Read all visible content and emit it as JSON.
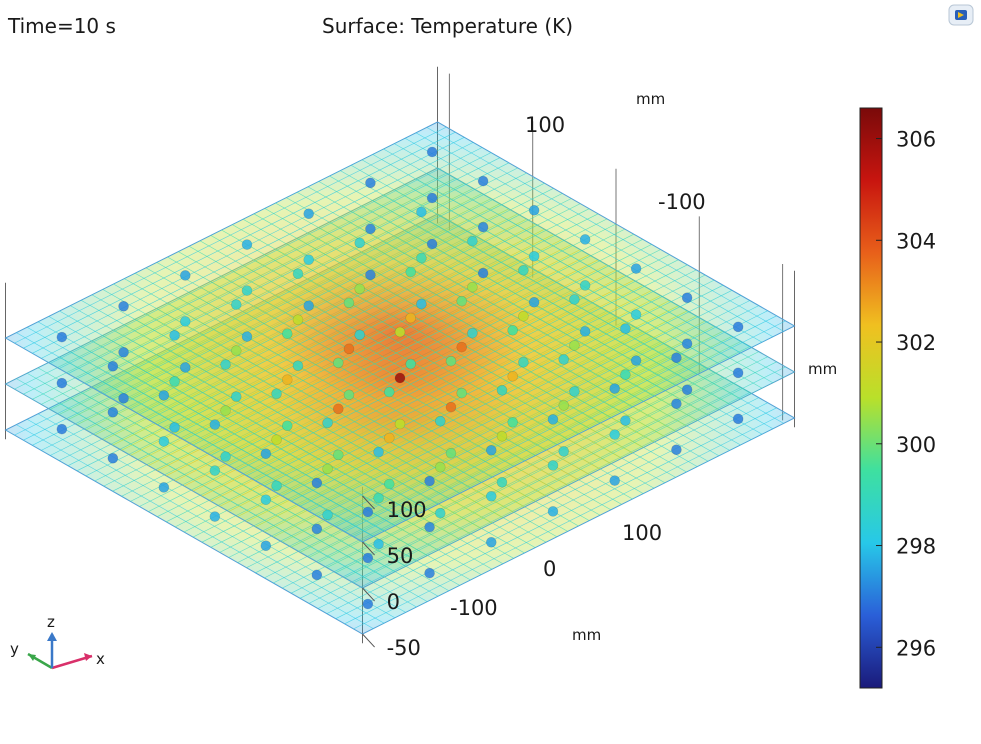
{
  "header": {
    "time_label": "Time=10 s",
    "plot_title": "Surface: Temperature (K)"
  },
  "icons": {
    "app_icon": "comsol-logo-icon",
    "triad": "xyz-axis-triad-icon"
  },
  "triad": {
    "x": "x",
    "y": "y",
    "z": "z"
  },
  "chart_data": {
    "type": "heatmap",
    "title": "Surface: Temperature (K)",
    "subtitle": "Time=10 s",
    "view": "3d",
    "quantity": "Temperature",
    "unit": "K",
    "axes": {
      "x": {
        "label": "mm",
        "ticks": [
          "100",
          "0",
          "-100"
        ]
      },
      "y": {
        "label": "mm",
        "ticks": [
          "100",
          "-100"
        ]
      },
      "z": {
        "label": "mm",
        "ticks": [
          "100",
          "50",
          "0",
          "-50"
        ]
      }
    },
    "colorbar": {
      "range": [
        295.2,
        306.6
      ],
      "ticks": [
        "306",
        "304",
        "302",
        "300",
        "298",
        "296"
      ],
      "colormap": [
        "#1a1a7a",
        "#2a5fd8",
        "#27c8e8",
        "#3ee0a0",
        "#b9e02a",
        "#f0c020",
        "#e8601a",
        "#c8150f",
        "#7a0a0a"
      ]
    },
    "slices_z_mm": [
      -50,
      0,
      50
    ],
    "slice_edge_temperature_K": [
      298.0,
      298.5,
      298.0
    ],
    "slice_center_temperature_K": [
      300.0,
      306.0,
      300.5
    ],
    "sphere_grid": {
      "count_per_layer": 7,
      "layers_z_mm": [
        -50,
        0,
        50
      ],
      "temperature_range_K": [
        296.5,
        306.0
      ]
    },
    "grid": true,
    "legend_placement": "right"
  }
}
